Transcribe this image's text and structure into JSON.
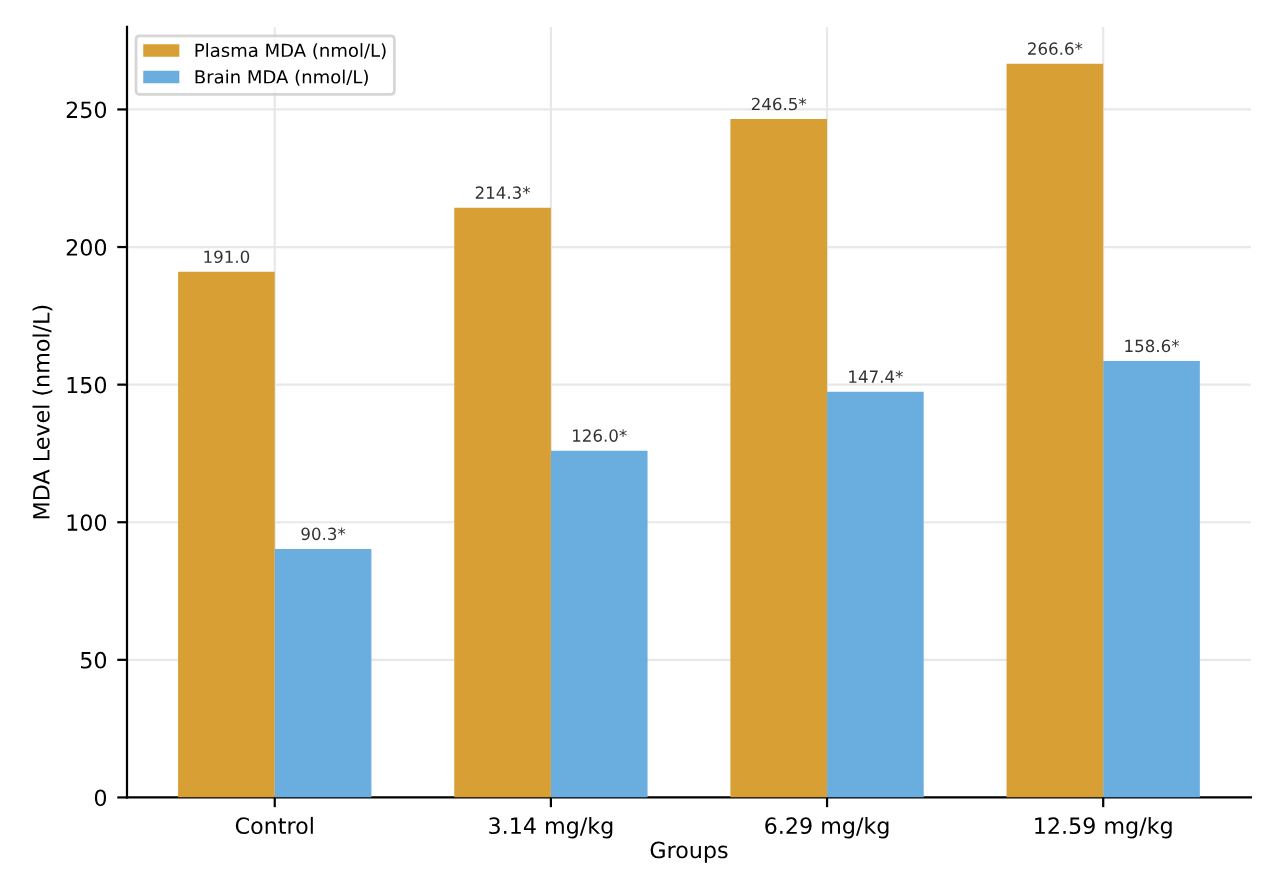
{
  "chart_data": {
    "type": "bar",
    "xlabel": "Groups",
    "ylabel": "MDA Level (nmol/L)",
    "categories": [
      "Control",
      "3.14 mg/kg",
      "6.29 mg/kg",
      "12.59 mg/kg"
    ],
    "series": [
      {
        "name": "Plasma MDA (nmol/L)",
        "color": "#d89f35",
        "values": [
          191.0,
          214.3,
          246.5,
          266.6
        ],
        "value_labels": [
          "191.0",
          "214.3*",
          "246.5*",
          "266.6*"
        ]
      },
      {
        "name": "Brain MDA (nmol/L)",
        "color": "#6aaee0",
        "values": [
          90.3,
          126.0,
          147.4,
          158.6
        ],
        "value_labels": [
          "90.3*",
          "126.0*",
          "147.4*",
          "158.6*"
        ]
      }
    ],
    "ylim": [
      0,
      280
    ],
    "yticks": [
      0,
      50,
      100,
      150,
      200,
      250
    ],
    "grid": true,
    "legend": "top left"
  }
}
